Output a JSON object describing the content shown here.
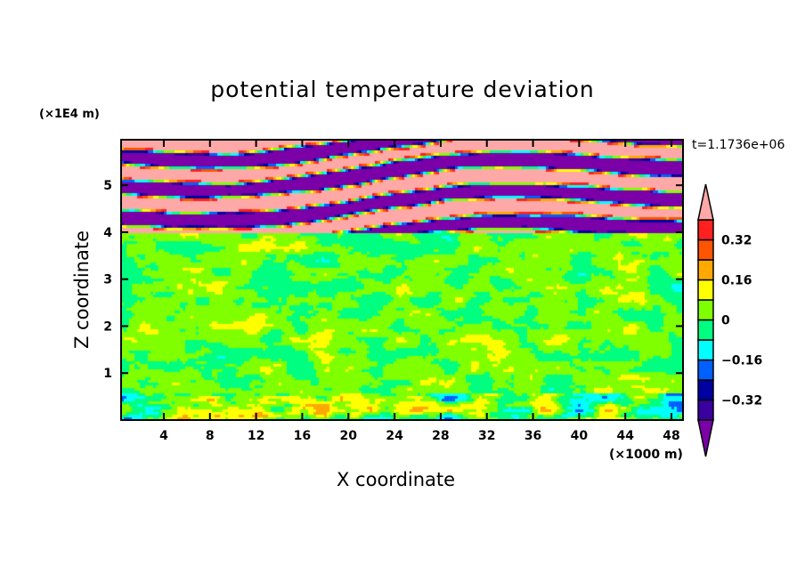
{
  "chart_data": {
    "type": "heatmap",
    "title": "potential temperature deviation",
    "xlabel": "X coordinate",
    "ylabel": "Z coordinate",
    "x_unit": "(×1000 m)",
    "y_unit": "(×1E4 m)",
    "time_label": "t=1.1736e+06",
    "xlim": [
      0.3,
      49.0
    ],
    "ylim": [
      0,
      5.97
    ],
    "xticks": [
      4,
      8,
      12,
      16,
      20,
      24,
      28,
      32,
      36,
      40,
      44,
      48
    ],
    "yticks": [
      1,
      2,
      3,
      4,
      5
    ],
    "colorbar": {
      "levels": [
        -0.4,
        -0.32,
        -0.24,
        -0.16,
        -0.08,
        0,
        0.08,
        0.16,
        0.24,
        0.32,
        0.4
      ],
      "labeled_levels": [
        "0.32",
        "0.16",
        "0",
        "−0.16",
        "−0.32"
      ],
      "labeled_values": [
        0.32,
        0.16,
        0,
        -0.16,
        -0.32
      ],
      "colors": [
        "#7b00a8",
        "#3a00a0",
        "#0000a0",
        "#0060ff",
        "#00ffff",
        "#00ff80",
        "#80ff00",
        "#ffff00",
        "#ffa800",
        "#ff5400",
        "#ff2020",
        "#ffa8a8"
      ],
      "extend": "both"
    },
    "description_of_field": {
      "upper_layer_z_range": [
        4.0,
        5.97
      ],
      "upper_layer_values": "alternating bands below -0.40 and above 0.40",
      "middle_layer_values": "mostly between -0.08 and 0.08",
      "lower_layer_z_range": [
        0,
        0.6
      ]
    }
  }
}
